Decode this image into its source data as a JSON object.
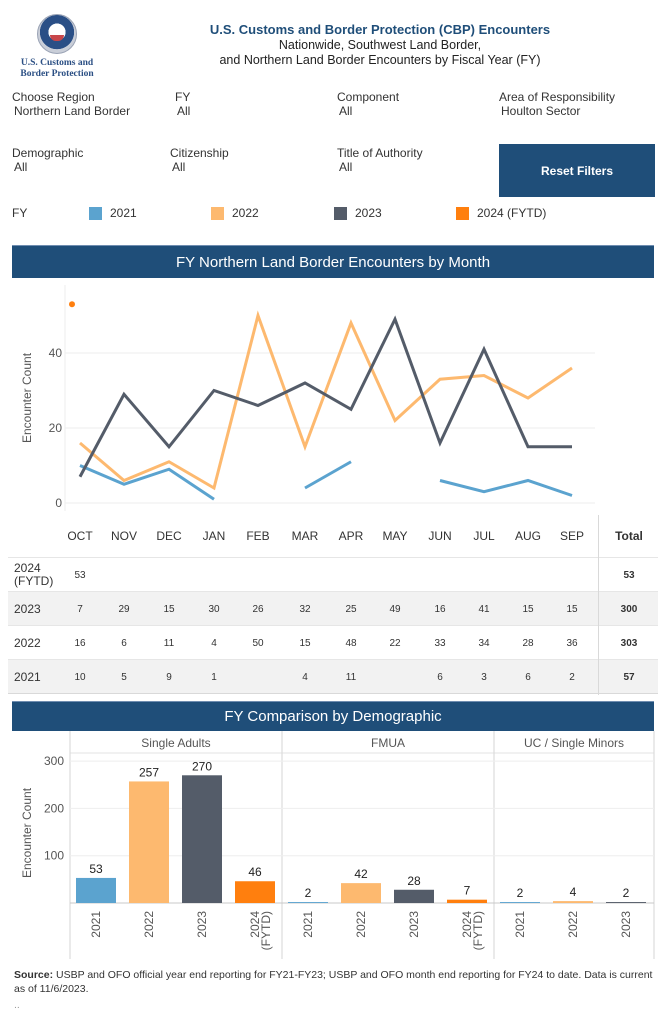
{
  "header": {
    "logo_text_line1": "U.S. Customs and",
    "logo_text_line2": "Border Protection",
    "title": "U.S. Customs and Border Protection (CBP) Encounters",
    "subtitle_line1": "Nationwide, Southwest Land Border,",
    "subtitle_line2": "and Northern Land Border Encounters by Fiscal Year (FY)"
  },
  "filters": [
    {
      "label": "Choose Region",
      "value": "Northern Land Border"
    },
    {
      "label": "FY",
      "value": "All"
    },
    {
      "label": "Component",
      "value": "All"
    },
    {
      "label": "Area of Responsibility",
      "value": "Houlton Sector"
    },
    {
      "label": "Demographic",
      "value": "All"
    },
    {
      "label": "Citizenship",
      "value": "All"
    },
    {
      "label": "Title of Authority",
      "value": "All"
    }
  ],
  "reset_label": "Reset Filters",
  "legend": {
    "title": "FY",
    "items": [
      {
        "label": "2021",
        "color": "#5ba3cf"
      },
      {
        "label": "2022",
        "color": "#fdb96f"
      },
      {
        "label": "2023",
        "color": "#545c69"
      },
      {
        "label": "2024 (FYTD)",
        "color": "#ff7f0e"
      }
    ]
  },
  "monthly_banner": "FY Northern Land Border Encounters by Month",
  "demographic_banner": "FY Comparison by Demographic",
  "table": {
    "months": [
      "OCT",
      "NOV",
      "DEC",
      "JAN",
      "FEB",
      "MAR",
      "APR",
      "MAY",
      "JUN",
      "JUL",
      "AUG",
      "SEP"
    ],
    "total_label": "Total",
    "rows": [
      {
        "label1": "2024",
        "label2": "(FYTD)",
        "values": [
          "53",
          "",
          "",
          "",
          "",
          "",
          "",
          "",
          "",
          "",
          "",
          ""
        ],
        "total": "53"
      },
      {
        "label1": "2023",
        "label2": "",
        "values": [
          "7",
          "29",
          "15",
          "30",
          "26",
          "32",
          "25",
          "49",
          "16",
          "41",
          "15",
          "15"
        ],
        "total": "300"
      },
      {
        "label1": "2022",
        "label2": "",
        "values": [
          "16",
          "6",
          "11",
          "4",
          "50",
          "15",
          "48",
          "22",
          "33",
          "34",
          "28",
          "36"
        ],
        "total": "303"
      },
      {
        "label1": "2021",
        "label2": "",
        "values": [
          "10",
          "5",
          "9",
          "1",
          "",
          "4",
          "11",
          "",
          "6",
          "3",
          "6",
          "2"
        ],
        "total": "57"
      }
    ]
  },
  "source": {
    "label": "Source:",
    "text": " USBP and OFO official year end reporting for FY21-FY23; USBP and OFO month end reporting for FY24 to date. Data is current as of 11/6/2023.",
    "trailer": ".."
  },
  "chart_data": [
    {
      "type": "line",
      "title": "FY Northern Land Border Encounters by Month",
      "xlabel": "",
      "ylabel": "Encounter Count",
      "categories": [
        "OCT",
        "NOV",
        "DEC",
        "JAN",
        "FEB",
        "MAR",
        "APR",
        "MAY",
        "JUN",
        "JUL",
        "AUG",
        "SEP"
      ],
      "yticks": [
        0,
        20,
        40
      ],
      "ylim": [
        0,
        55
      ],
      "grid": true,
      "series": [
        {
          "name": "2021",
          "color": "#5ba3cf",
          "values": [
            10,
            5,
            9,
            1,
            null,
            4,
            11,
            null,
            6,
            3,
            6,
            2
          ]
        },
        {
          "name": "2022",
          "color": "#fdb96f",
          "values": [
            16,
            6,
            11,
            4,
            50,
            15,
            48,
            22,
            33,
            34,
            28,
            36
          ]
        },
        {
          "name": "2023",
          "color": "#545c69",
          "values": [
            7,
            29,
            15,
            30,
            26,
            32,
            25,
            49,
            16,
            41,
            15,
            15
          ]
        },
        {
          "name": "2024 (FYTD)",
          "color": "#ff7f0e",
          "values": [
            53,
            null,
            null,
            null,
            null,
            null,
            null,
            null,
            null,
            null,
            null,
            null
          ]
        }
      ]
    },
    {
      "type": "bar",
      "title": "FY Comparison by Demographic",
      "ylabel": "Encounter Count",
      "yticks": [
        100,
        200,
        300
      ],
      "ylim": [
        0,
        320
      ],
      "grid": true,
      "panels": [
        {
          "name": "Single Adults",
          "bars": [
            {
              "category": "2021",
              "value": 53,
              "color": "#5ba3cf"
            },
            {
              "category": "2022",
              "value": 257,
              "color": "#fdb96f"
            },
            {
              "category": "2023",
              "value": 270,
              "color": "#545c69"
            },
            {
              "category": "2024 (FYTD)",
              "value": 46,
              "color": "#ff7f0e"
            }
          ]
        },
        {
          "name": "FMUA",
          "bars": [
            {
              "category": "2021",
              "value": 2,
              "color": "#5ba3cf"
            },
            {
              "category": "2022",
              "value": 42,
              "color": "#fdb96f"
            },
            {
              "category": "2023",
              "value": 28,
              "color": "#545c69"
            },
            {
              "category": "2024 (FYTD)",
              "value": 7,
              "color": "#ff7f0e"
            }
          ]
        },
        {
          "name": "UC / Single Minors",
          "bars": [
            {
              "category": "2021",
              "value": 2,
              "color": "#5ba3cf"
            },
            {
              "category": "2022",
              "value": 4,
              "color": "#fdb96f"
            },
            {
              "category": "2023",
              "value": 2,
              "color": "#545c69"
            }
          ]
        }
      ]
    }
  ]
}
